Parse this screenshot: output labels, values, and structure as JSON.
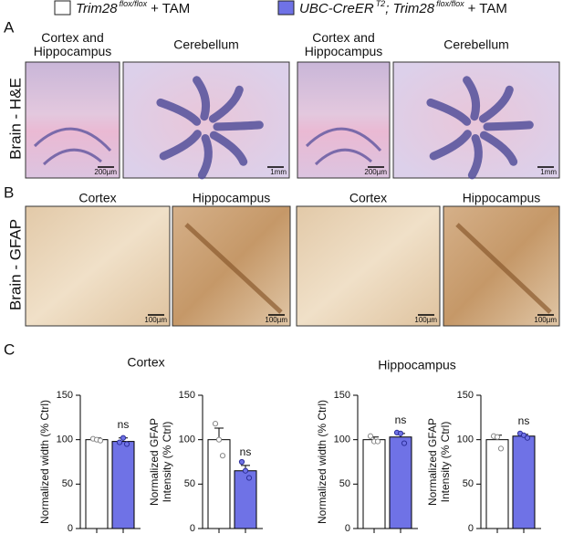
{
  "legend": [
    {
      "color": "#ffffff",
      "parts": [
        {
          "text": "Trim28",
          "style": "italic"
        },
        {
          "text": "flox/flox",
          "style": "sup"
        },
        {
          "text": "+ TAM",
          "style": "normal"
        }
      ]
    },
    {
      "color": "#6f72e6",
      "parts": [
        {
          "text": "UBC-CreER",
          "style": "italic"
        },
        {
          "text": "T2",
          "style": "sup"
        },
        {
          "text": "; Trim28",
          "style": "italic"
        },
        {
          "text": "flox/flox",
          "style": "sup"
        },
        {
          "text": "+ TAM",
          "style": "normal"
        }
      ]
    }
  ],
  "panels": {
    "A": {
      "label": "A",
      "row_label": "Brain - H&E",
      "images": [
        {
          "title": [
            "Cortex and",
            "Hippocampus"
          ],
          "scale": "200µm"
        },
        {
          "title": [
            "Cerebellum"
          ],
          "scale": "1mm"
        },
        {
          "title": [
            "Cortex and",
            "Hippocampus"
          ],
          "scale": "200µm"
        },
        {
          "title": [
            "Cerebellum"
          ],
          "scale": "1mm"
        }
      ]
    },
    "B": {
      "label": "B",
      "row_label": "Brain - GFAP",
      "images": [
        {
          "title": [
            "Cortex"
          ],
          "scale": "100µm"
        },
        {
          "title": [
            "Hippocampus"
          ],
          "scale": "100µm"
        },
        {
          "title": [
            "Cortex"
          ],
          "scale": "100µm"
        },
        {
          "title": [
            "Hippocampus"
          ],
          "scale": "100µm"
        }
      ]
    },
    "C": {
      "label": "C",
      "headers": [
        "Cortex",
        "Hippocampus"
      ]
    }
  },
  "chart_data": [
    {
      "type": "bar",
      "ylabel": [
        "Normalized width (% Ctrl)"
      ],
      "categories": [
        null,
        null
      ],
      "values": [
        100,
        98
      ],
      "errors": [
        2,
        4
      ],
      "points": [
        [
          101,
          100,
          99
        ],
        [
          97,
          102,
          95
        ]
      ],
      "colors": [
        "#ffffff",
        "#6f72e6"
      ],
      "annotations": [
        {
          "text": "ns",
          "index": 1
        }
      ],
      "ylim": [
        0,
        150
      ],
      "yticks": [
        0,
        50,
        100,
        150
      ]
    },
    {
      "type": "bar",
      "ylabel": [
        "Normalized GFAP",
        "Intensity (% Ctrl)"
      ],
      "categories": [
        null,
        null
      ],
      "values": [
        100,
        65
      ],
      "errors": [
        13,
        6
      ],
      "points": [
        [
          118,
          100,
          82
        ],
        [
          75,
          65,
          57
        ]
      ],
      "colors": [
        "#ffffff",
        "#6f72e6"
      ],
      "annotations": [
        {
          "text": "ns",
          "index": 1
        }
      ],
      "ylim": [
        0,
        150
      ],
      "yticks": [
        0,
        50,
        100,
        150
      ]
    },
    {
      "type": "bar",
      "ylabel": [
        "Normalized width (% Ctrl)"
      ],
      "categories": [
        null,
        null
      ],
      "values": [
        100,
        103
      ],
      "errors": [
        3,
        4
      ],
      "points": [
        [
          104,
          98,
          98
        ],
        [
          108,
          107,
          96
        ]
      ],
      "colors": [
        "#ffffff",
        "#6f72e6"
      ],
      "annotations": [
        {
          "text": "ns",
          "index": 1
        }
      ],
      "ylim": [
        0,
        150
      ],
      "yticks": [
        0,
        50,
        100,
        150
      ]
    },
    {
      "type": "bar",
      "ylabel": [
        "Normalized GFAP",
        "Intensity (% Ctrl)"
      ],
      "categories": [
        null,
        null
      ],
      "values": [
        100,
        104
      ],
      "errors": [
        5,
        2
      ],
      "points": [
        [
          104,
          103,
          90
        ],
        [
          107,
          105,
          102
        ]
      ],
      "colors": [
        "#ffffff",
        "#6f72e6"
      ],
      "annotations": [
        {
          "text": "ns",
          "index": 1
        }
      ],
      "ylim": [
        0,
        150
      ],
      "yticks": [
        0,
        50,
        100,
        150
      ]
    }
  ]
}
